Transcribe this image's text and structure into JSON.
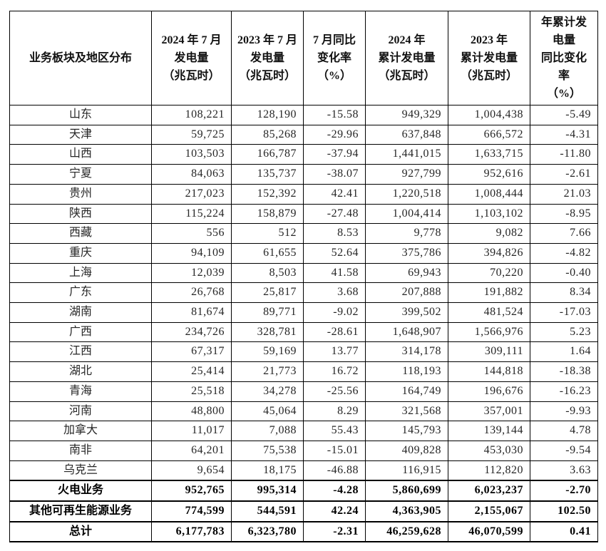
{
  "table": {
    "columns": [
      {
        "label": "业务板块及地区分布"
      },
      {
        "label": "2024 年 7 月\n发电量\n（兆瓦时）"
      },
      {
        "label": "2023 年 7 月\n发电量\n（兆瓦时）"
      },
      {
        "label": "7 月同比\n变化率\n（%）"
      },
      {
        "label": "2024 年\n累计发电量\n（兆瓦时）"
      },
      {
        "label": "2023 年\n累计发电量\n（兆瓦时）"
      },
      {
        "label": "年累计发\n电量\n同比变化\n率\n（%）"
      }
    ],
    "rows": [
      {
        "region": "山东",
        "bold": false,
        "values": [
          "108,221",
          "128,190",
          "-15.58",
          "949,329",
          "1,004,438",
          "-5.49"
        ]
      },
      {
        "region": "天津",
        "bold": false,
        "values": [
          "59,725",
          "85,268",
          "-29.96",
          "637,848",
          "666,572",
          "-4.31"
        ]
      },
      {
        "region": "山西",
        "bold": false,
        "values": [
          "103,503",
          "166,787",
          "-37.94",
          "1,441,015",
          "1,633,715",
          "-11.80"
        ]
      },
      {
        "region": "宁夏",
        "bold": false,
        "values": [
          "84,063",
          "135,737",
          "-38.07",
          "927,799",
          "952,616",
          "-2.61"
        ]
      },
      {
        "region": "贵州",
        "bold": false,
        "values": [
          "217,023",
          "152,392",
          "42.41",
          "1,220,518",
          "1,008,444",
          "21.03"
        ]
      },
      {
        "region": "陕西",
        "bold": false,
        "values": [
          "115,224",
          "158,879",
          "-27.48",
          "1,004,414",
          "1,103,102",
          "-8.95"
        ]
      },
      {
        "region": "西藏",
        "bold": false,
        "values": [
          "556",
          "512",
          "8.53",
          "9,778",
          "9,082",
          "7.66"
        ]
      },
      {
        "region": "重庆",
        "bold": false,
        "values": [
          "94,109",
          "61,655",
          "52.64",
          "375,786",
          "394,826",
          "-4.82"
        ]
      },
      {
        "region": "上海",
        "bold": false,
        "values": [
          "12,039",
          "8,503",
          "41.58",
          "69,943",
          "70,220",
          "-0.40"
        ]
      },
      {
        "region": "广东",
        "bold": false,
        "values": [
          "26,768",
          "25,817",
          "3.68",
          "207,888",
          "191,882",
          "8.34"
        ]
      },
      {
        "region": "湖南",
        "bold": false,
        "values": [
          "81,674",
          "89,771",
          "-9.02",
          "399,502",
          "481,524",
          "-17.03"
        ]
      },
      {
        "region": "广西",
        "bold": false,
        "values": [
          "234,726",
          "328,781",
          "-28.61",
          "1,648,907",
          "1,566,976",
          "5.23"
        ]
      },
      {
        "region": "江西",
        "bold": false,
        "values": [
          "67,317",
          "59,169",
          "13.77",
          "314,178",
          "309,111",
          "1.64"
        ]
      },
      {
        "region": "湖北",
        "bold": false,
        "values": [
          "25,414",
          "21,773",
          "16.72",
          "118,193",
          "144,818",
          "-18.38"
        ]
      },
      {
        "region": "青海",
        "bold": false,
        "values": [
          "25,518",
          "34,278",
          "-25.56",
          "164,749",
          "196,676",
          "-16.23"
        ]
      },
      {
        "region": "河南",
        "bold": false,
        "values": [
          "48,800",
          "45,064",
          "8.29",
          "321,568",
          "357,001",
          "-9.93"
        ]
      },
      {
        "region": "加拿大",
        "bold": false,
        "values": [
          "11,017",
          "7,088",
          "55.43",
          "145,793",
          "139,144",
          "4.78"
        ]
      },
      {
        "region": "南非",
        "bold": false,
        "values": [
          "64,201",
          "75,538",
          "-15.01",
          "409,828",
          "453,030",
          "-9.54"
        ]
      },
      {
        "region": "乌克兰",
        "bold": false,
        "values": [
          "9,654",
          "18,175",
          "-46.88",
          "116,915",
          "112,820",
          "3.63"
        ]
      },
      {
        "region": "火电业务",
        "bold": true,
        "values": [
          "952,765",
          "995,314",
          "-4.28",
          "5,860,699",
          "6,023,237",
          "-2.70"
        ]
      },
      {
        "region": "其他可再生能源业务",
        "bold": true,
        "values": [
          "774,599",
          "544,591",
          "42.24",
          "4,363,905",
          "2,155,067",
          "102.50"
        ]
      },
      {
        "region": "总计",
        "bold": true,
        "values": [
          "6,177,783",
          "6,323,780",
          "-2.31",
          "46,259,628",
          "46,070,599",
          "0.41"
        ]
      }
    ]
  }
}
